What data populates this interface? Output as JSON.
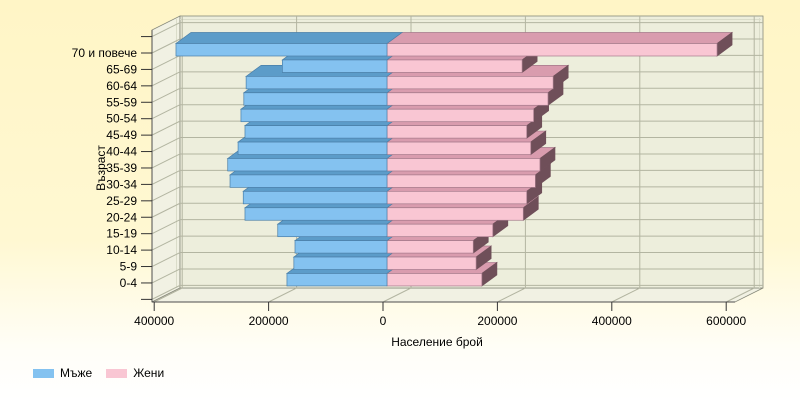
{
  "chart_data": {
    "type": "bar",
    "subtype": "population-pyramid-3d",
    "title": "",
    "xlabel": "Население брой",
    "ylabel": "Възраст",
    "categories": [
      "70 и повече",
      "65-69",
      "60-64",
      "55-59",
      "50-54",
      "45-49",
      "40-44",
      "35-39",
      "30-34",
      "25-29",
      "20-24",
      "15-19",
      "10-14",
      "5-9",
      "0-4"
    ],
    "categories_order": "top-down",
    "series": [
      {
        "name": "Мъже",
        "side": "left",
        "color": "#84C2F0",
        "color_top": "#5C9CC9",
        "outline": "#4A7FA8",
        "values": [
          367000,
          182000,
          245000,
          249000,
          254000,
          247000,
          259000,
          277000,
          273000,
          250000,
          247000,
          190000,
          160000,
          162000,
          174000
        ]
      },
      {
        "name": "Жени",
        "side": "right",
        "color": "#F9C6D3",
        "color_top": "#D99CAE",
        "color_side": "#6F4F59",
        "outline": "#A5798A",
        "values": [
          574000,
          235000,
          289000,
          280000,
          255000,
          243000,
          250000,
          266000,
          258000,
          243000,
          237000,
          184000,
          150000,
          155000,
          165000
        ]
      }
    ],
    "x_axis": {
      "tick_values": [
        -400000,
        -200000,
        0,
        200000,
        400000,
        600000
      ],
      "tick_labels": [
        "400000",
        "200000",
        "0",
        "200000",
        "400000",
        "600000"
      ],
      "range": [
        -420000,
        640000
      ]
    },
    "grid": true,
    "legend_position": "bottom-left"
  },
  "colors": {
    "page_bg_top": "#FFF5C6",
    "page_bg_mid": "#FFF8D2",
    "page_bg_bottom": "#FFFFFF",
    "wall": "#EDEEDC",
    "side_wall": "#F1F1E3",
    "gridline": "#B3B5A1",
    "wall_edge": "#87897B",
    "wall_inner_edge": "#DADCC9",
    "axis": "#4D4D4D",
    "tick": "#333333",
    "text": "#000000"
  }
}
